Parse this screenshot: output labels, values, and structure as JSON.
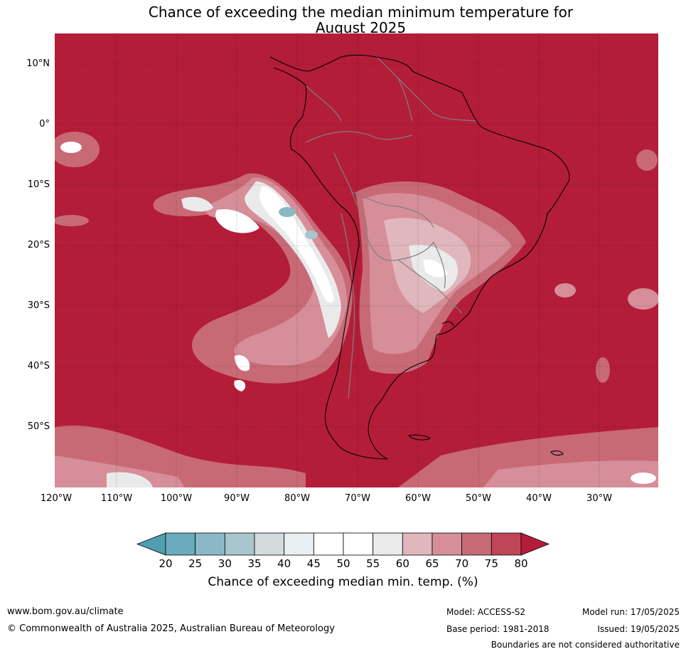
{
  "title_line1": "Chance of exceeding the median minimum temperature for",
  "title_line2": "August 2025",
  "lat_labels": [
    "10°N",
    "0°",
    "10°S",
    "20°S",
    "30°S",
    "40°S",
    "50°S"
  ],
  "lon_labels": [
    "120°W",
    "110°W",
    "100°W",
    "90°W",
    "80°W",
    "70°W",
    "60°W",
    "50°W",
    "40°W",
    "30°W"
  ],
  "colorbar": {
    "ticks": [
      "20",
      "25",
      "30",
      "35",
      "40",
      "45",
      "50",
      "55",
      "60",
      "65",
      "70",
      "75",
      "80"
    ],
    "colors": [
      "#4f9fae",
      "#6aacbb",
      "#8ab9c5",
      "#a8c6cc",
      "#d2dadc",
      "#eaf0f2",
      "#ffffff",
      "#ffffff",
      "#ebeaeb",
      "#e0b7bd",
      "#d68e98",
      "#c86a76",
      "#bf4657",
      "#b31d38"
    ],
    "title": "Chance of exceeding median min. temp. (%)"
  },
  "map_colors": {
    "ocean_high": "#b31d38",
    "band_75": "#bf4657",
    "band_70": "#c86a76",
    "band_65": "#d68e98",
    "band_60": "#e0b7bd",
    "band_55": "#ebeaeb",
    "band_50": "#ffffff",
    "band_40": "#eaf0f2",
    "band_30": "#8ab9c5",
    "coast": "#000000",
    "borders": "#808080",
    "grid": "#000000"
  },
  "footer": {
    "website": "www.bom.gov.au/climate",
    "copyright": "© Commonwealth of Australia 2025, Australian Bureau of Meteorology",
    "model": "Model: ACCESS-S2",
    "base_period": "Base period: 1981-2018",
    "model_run": "Model run: 17/05/2025",
    "issued": "Issued: 19/05/2025",
    "disclaimer": "Boundaries are not considered authoritative"
  }
}
